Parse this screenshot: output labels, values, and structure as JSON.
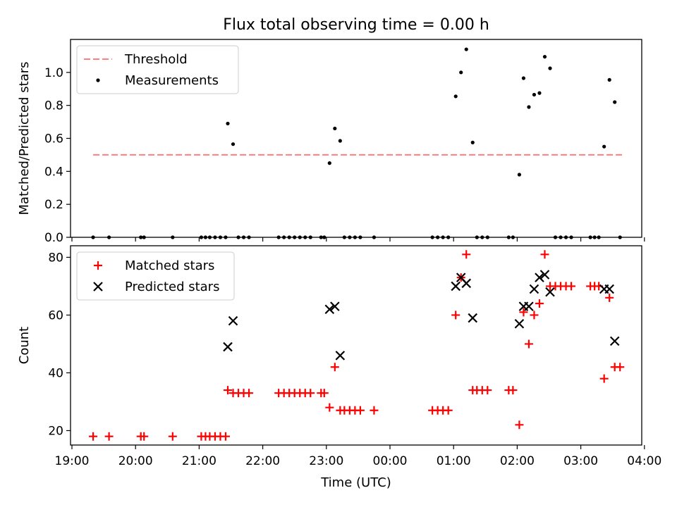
{
  "figure": {
    "title": "Flux total observing time = 0.00 h",
    "xlabel": "Time (UTC)"
  },
  "chart_data": [
    {
      "type": "scatter",
      "panel": "top",
      "title": "Flux total observing time = 0.00 h",
      "ylabel": "Matched/Predicted stars",
      "xlabel": "",
      "xlim": [
        "19:00",
        "04:00"
      ],
      "ylim": [
        0,
        1.2
      ],
      "yticks": [
        "0.0",
        "0.2",
        "0.4",
        "0.6",
        "0.8",
        "1.0"
      ],
      "grid": false,
      "legend_position": "top-left",
      "threshold": {
        "name": "Threshold",
        "value": 0.5,
        "x_start": "19:20",
        "x_end": "03:40",
        "color": "#ff7f7f",
        "style": "dashed"
      },
      "series": [
        {
          "name": "Measurements",
          "marker": "dot",
          "color": "#000000",
          "points": [
            [
              "19:20",
              0
            ],
            [
              "19:35",
              0
            ],
            [
              "20:05",
              0
            ],
            [
              "20:08",
              0
            ],
            [
              "20:35",
              0
            ],
            [
              "21:02",
              0
            ],
            [
              "21:06",
              0
            ],
            [
              "21:10",
              0
            ],
            [
              "21:15",
              0
            ],
            [
              "21:20",
              0
            ],
            [
              "21:25",
              0
            ],
            [
              "21:27",
              0.69
            ],
            [
              "21:32",
              0.565
            ],
            [
              "21:37",
              0
            ],
            [
              "21:42",
              0
            ],
            [
              "21:47",
              0
            ],
            [
              "22:15",
              0
            ],
            [
              "22:20",
              0
            ],
            [
              "22:25",
              0
            ],
            [
              "22:30",
              0
            ],
            [
              "22:35",
              0
            ],
            [
              "22:40",
              0
            ],
            [
              "22:45",
              0
            ],
            [
              "22:55",
              0
            ],
            [
              "22:58",
              0
            ],
            [
              "23:03",
              0.45
            ],
            [
              "23:08",
              0.66
            ],
            [
              "23:13",
              0.585
            ],
            [
              "23:17",
              0
            ],
            [
              "23:22",
              0
            ],
            [
              "23:27",
              0
            ],
            [
              "23:32",
              0
            ],
            [
              "23:45",
              0
            ],
            [
              "00:40",
              0
            ],
            [
              "00:45",
              0
            ],
            [
              "00:50",
              0
            ],
            [
              "00:55",
              0
            ],
            [
              "01:02",
              0.855
            ],
            [
              "01:07",
              1.0
            ],
            [
              "01:12",
              1.14
            ],
            [
              "01:18",
              0.575
            ],
            [
              "01:22",
              0
            ],
            [
              "01:27",
              0
            ],
            [
              "01:32",
              0
            ],
            [
              "01:52",
              0
            ],
            [
              "01:56",
              0
            ],
            [
              "02:02",
              0.38
            ],
            [
              "02:06",
              0.965
            ],
            [
              "02:11",
              0.79
            ],
            [
              "02:16",
              0.865
            ],
            [
              "02:21",
              0.875
            ],
            [
              "02:26",
              1.095
            ],
            [
              "02:31",
              1.025
            ],
            [
              "02:36",
              0
            ],
            [
              "02:41",
              0
            ],
            [
              "02:46",
              0
            ],
            [
              "02:51",
              0
            ],
            [
              "03:09",
              0
            ],
            [
              "03:13",
              0
            ],
            [
              "03:17",
              0
            ],
            [
              "03:22",
              0.55
            ],
            [
              "03:27",
              0.955
            ],
            [
              "03:32",
              0.82
            ],
            [
              "03:37",
              0
            ]
          ]
        }
      ]
    },
    {
      "type": "scatter",
      "panel": "bottom",
      "title": "",
      "ylabel": "Count",
      "xlabel": "Time (UTC)",
      "xlim": [
        "19:00",
        "04:00"
      ],
      "ylim": [
        15,
        84
      ],
      "yticks": [
        "20",
        "40",
        "60",
        "80"
      ],
      "xticks": [
        "19:00",
        "20:00",
        "21:00",
        "22:00",
        "23:00",
        "00:00",
        "01:00",
        "02:00",
        "03:00",
        "04:00"
      ],
      "grid": false,
      "legend_position": "top-left",
      "series": [
        {
          "name": "Matched stars",
          "marker": "plus",
          "color": "#ff0000",
          "points": [
            [
              "19:20",
              18
            ],
            [
              "19:35",
              18
            ],
            [
              "20:05",
              18
            ],
            [
              "20:08",
              18
            ],
            [
              "20:35",
              18
            ],
            [
              "21:02",
              18
            ],
            [
              "21:06",
              18
            ],
            [
              "21:10",
              18
            ],
            [
              "21:15",
              18
            ],
            [
              "21:20",
              18
            ],
            [
              "21:25",
              18
            ],
            [
              "21:27",
              34
            ],
            [
              "21:32",
              33
            ],
            [
              "21:37",
              33
            ],
            [
              "21:42",
              33
            ],
            [
              "21:47",
              33
            ],
            [
              "22:15",
              33
            ],
            [
              "22:20",
              33
            ],
            [
              "22:25",
              33
            ],
            [
              "22:30",
              33
            ],
            [
              "22:35",
              33
            ],
            [
              "22:40",
              33
            ],
            [
              "22:45",
              33
            ],
            [
              "22:55",
              33
            ],
            [
              "22:58",
              33
            ],
            [
              "23:03",
              28
            ],
            [
              "23:08",
              42
            ],
            [
              "23:13",
              27
            ],
            [
              "23:17",
              27
            ],
            [
              "23:22",
              27
            ],
            [
              "23:27",
              27
            ],
            [
              "23:32",
              27
            ],
            [
              "23:45",
              27
            ],
            [
              "00:40",
              27
            ],
            [
              "00:45",
              27
            ],
            [
              "00:50",
              27
            ],
            [
              "00:55",
              27
            ],
            [
              "01:02",
              60
            ],
            [
              "01:07",
              73
            ],
            [
              "01:12",
              81
            ],
            [
              "01:18",
              34
            ],
            [
              "01:22",
              34
            ],
            [
              "01:27",
              34
            ],
            [
              "01:32",
              34
            ],
            [
              "01:52",
              34
            ],
            [
              "01:56",
              34
            ],
            [
              "02:02",
              22
            ],
            [
              "02:06",
              61
            ],
            [
              "02:11",
              50
            ],
            [
              "02:16",
              60
            ],
            [
              "02:21",
              64
            ],
            [
              "02:26",
              81
            ],
            [
              "02:31",
              70
            ],
            [
              "02:36",
              70
            ],
            [
              "02:41",
              70
            ],
            [
              "02:46",
              70
            ],
            [
              "02:51",
              70
            ],
            [
              "03:09",
              70
            ],
            [
              "03:13",
              70
            ],
            [
              "03:17",
              70
            ],
            [
              "03:22",
              38
            ],
            [
              "03:27",
              66
            ],
            [
              "03:32",
              42
            ],
            [
              "03:37",
              42
            ]
          ]
        },
        {
          "name": "Predicted stars",
          "marker": "x",
          "color": "#000000",
          "points": [
            [
              "21:27",
              49
            ],
            [
              "21:32",
              58
            ],
            [
              "23:03",
              62
            ],
            [
              "23:08",
              63
            ],
            [
              "23:13",
              46
            ],
            [
              "01:02",
              70
            ],
            [
              "01:07",
              73
            ],
            [
              "01:12",
              71
            ],
            [
              "01:18",
              59
            ],
            [
              "02:02",
              57
            ],
            [
              "02:06",
              63
            ],
            [
              "02:11",
              63
            ],
            [
              "02:16",
              69
            ],
            [
              "02:21",
              73
            ],
            [
              "02:26",
              74
            ],
            [
              "02:31",
              68
            ],
            [
              "03:22",
              69
            ],
            [
              "03:27",
              69
            ],
            [
              "03:32",
              51
            ]
          ]
        }
      ]
    }
  ]
}
